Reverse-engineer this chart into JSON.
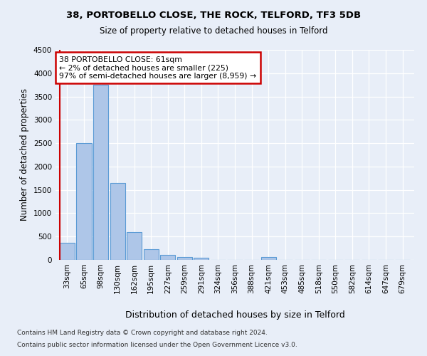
{
  "title1": "38, PORTOBELLO CLOSE, THE ROCK, TELFORD, TF3 5DB",
  "title2": "Size of property relative to detached houses in Telford",
  "xlabel": "Distribution of detached houses by size in Telford",
  "ylabel": "Number of detached properties",
  "categories": [
    "33sqm",
    "65sqm",
    "98sqm",
    "130sqm",
    "162sqm",
    "195sqm",
    "227sqm",
    "259sqm",
    "291sqm",
    "324sqm",
    "356sqm",
    "388sqm",
    "421sqm",
    "453sqm",
    "485sqm",
    "518sqm",
    "550sqm",
    "582sqm",
    "614sqm",
    "647sqm",
    "679sqm"
  ],
  "values": [
    360,
    2500,
    3750,
    1640,
    590,
    230,
    110,
    65,
    40,
    0,
    0,
    0,
    60,
    0,
    0,
    0,
    0,
    0,
    0,
    0,
    0
  ],
  "bar_color": "#aec6e8",
  "bar_edge_color": "#5b9bd5",
  "highlight_color": "#cc0000",
  "annotation_title": "38 PORTOBELLO CLOSE: 61sqm",
  "annotation_line2": "← 2% of detached houses are smaller (225)",
  "annotation_line3": "97% of semi-detached houses are larger (8,959) →",
  "annotation_box_color": "#cc0000",
  "ylim": [
    0,
    4500
  ],
  "yticks": [
    0,
    500,
    1000,
    1500,
    2000,
    2500,
    3000,
    3500,
    4000,
    4500
  ],
  "footnote1": "Contains HM Land Registry data © Crown copyright and database right 2024.",
  "footnote2": "Contains public sector information licensed under the Open Government Licence v3.0.",
  "bg_color": "#e8eef8",
  "plot_bg_color": "#e8eef8"
}
